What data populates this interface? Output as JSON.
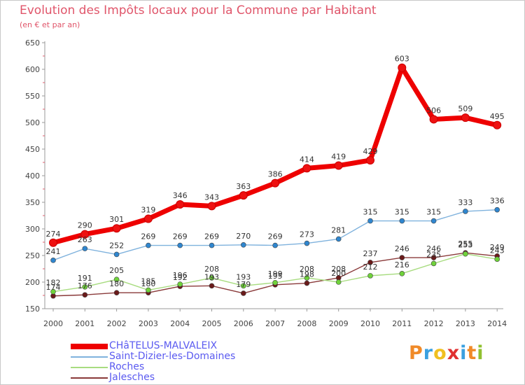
{
  "header": {
    "title": "Evolution des Impôts locaux pour la Commune par Habitant",
    "subtitle": "(en € et par an)"
  },
  "logo": {
    "text": "Proxiti",
    "colors": [
      "#f08a28",
      "#3aa0e0",
      "#f0c020",
      "#e03030",
      "#3aa0e0",
      "#f08a28",
      "#90c030"
    ]
  },
  "chart_data": {
    "type": "line",
    "title": "Evolution des Impôts locaux pour la Commune par Habitant",
    "subtitle": "(en € et par an)",
    "x": [
      2000,
      2001,
      2002,
      2003,
      2004,
      2005,
      2006,
      2007,
      2008,
      2009,
      2010,
      2011,
      2012,
      2013,
      2014
    ],
    "ylim": [
      150,
      650
    ],
    "yticks": [
      150,
      200,
      250,
      300,
      350,
      400,
      450,
      500,
      550,
      600,
      650
    ],
    "grid": false,
    "legend": "bottom-left",
    "series": [
      {
        "name": "CHâTELUS-MALVALEIX",
        "color": "#ee0000",
        "marker": "#ee1111",
        "values": [
          274,
          290,
          301,
          319,
          346,
          343,
          363,
          386,
          414,
          419,
          429,
          603,
          506,
          509,
          495
        ]
      },
      {
        "name": "Saint-Dizier-les-Domaines",
        "color": "#7fb2dd",
        "marker": "#2f86cf",
        "values": [
          241,
          263,
          252,
          269,
          269,
          269,
          270,
          269,
          273,
          281,
          315,
          315,
          315,
          333,
          336
        ]
      },
      {
        "name": "Roches",
        "color": "#a8dc80",
        "marker": "#6fd23a",
        "values": [
          182,
          191,
          205,
          185,
          196,
          208,
          193,
          199,
          208,
          200,
          212,
          216,
          235,
          253,
          243
        ]
      },
      {
        "name": "Jalesches",
        "color": "#8a3a3a",
        "marker": "#6a1a1a",
        "values": [
          174,
          176,
          180,
          180,
          192,
          193,
          179,
          195,
          198,
          208,
          237,
          246,
          246,
          255,
          249
        ]
      }
    ]
  }
}
